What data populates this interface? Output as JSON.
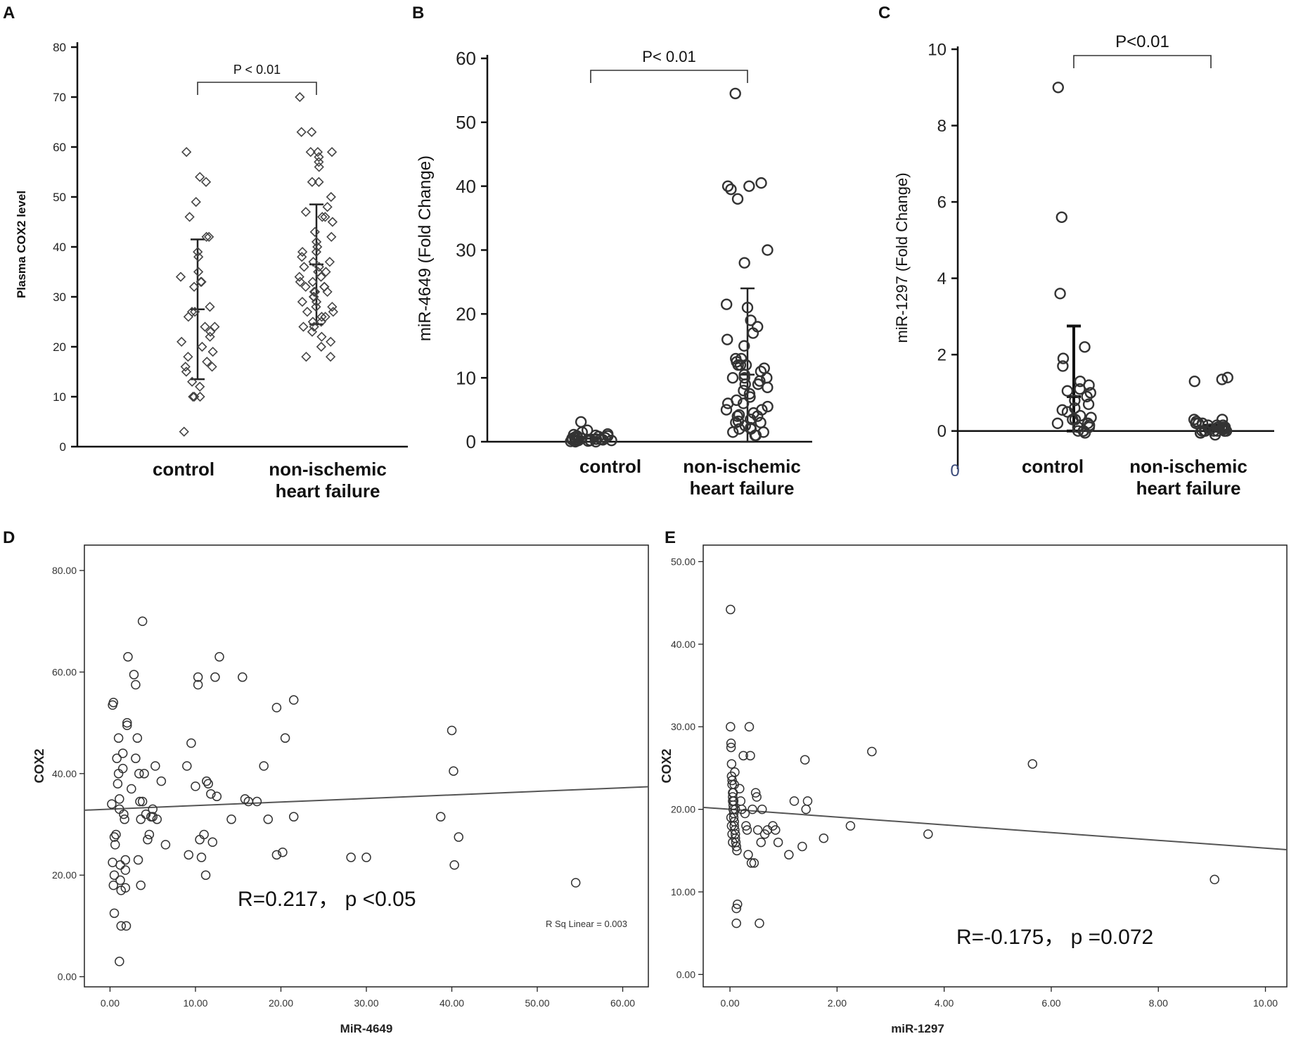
{
  "chart_data": [
    {
      "panel": "A",
      "type": "scatter",
      "ylabel": "Plasma COX2 level",
      "ylim": [
        0,
        80
      ],
      "yticks": [
        "0",
        "10",
        "20",
        "30",
        "40",
        "50",
        "60",
        "70",
        "80"
      ],
      "categories": [
        "control",
        "non-ischemic heart failure"
      ],
      "category_lines": [
        [
          "control"
        ],
        [
          "non-ischemic",
          "heart failure"
        ]
      ],
      "annotation": "P < 0.01",
      "marker": "diamond",
      "groups": [
        {
          "name": "control",
          "mean": 27.5,
          "sd": 14,
          "values": [
            59,
            53,
            54,
            49,
            46,
            42,
            42,
            39,
            38,
            35,
            34,
            33,
            33,
            32,
            28,
            27,
            27,
            26,
            24,
            24,
            23,
            22,
            21,
            20,
            19,
            18,
            17,
            16,
            16,
            15,
            13,
            12,
            10,
            10,
            10,
            3
          ]
        },
        {
          "name": "non-ischemic heart failure",
          "mean": 36.5,
          "sd": 12,
          "values": [
            70,
            63,
            63,
            59,
            59,
            59,
            58,
            57,
            56,
            53,
            53,
            50,
            48,
            47,
            46,
            46,
            45,
            43,
            42,
            41,
            40,
            39,
            39,
            38,
            37,
            37,
            36,
            36,
            35,
            35,
            34,
            34,
            33,
            33,
            32,
            32,
            32,
            31,
            31,
            31,
            30,
            30,
            29,
            29,
            28,
            28,
            27,
            27,
            26,
            26,
            25,
            25,
            24,
            24,
            23,
            22,
            21,
            20,
            18,
            18
          ]
        }
      ]
    },
    {
      "panel": "B",
      "type": "scatter",
      "ylabel": "miR-4649 (Fold  Change)",
      "ylim": [
        0,
        60
      ],
      "yticks": [
        "0",
        "10",
        "20",
        "30",
        "40",
        "50",
        "60"
      ],
      "categories": [
        "control",
        "non-ischemic heart failure"
      ],
      "category_lines": [
        [
          "control"
        ],
        [
          "non-ischemic",
          "heart failure"
        ]
      ],
      "annotation": "P< 0.01",
      "marker": "circle",
      "groups": [
        {
          "name": "control",
          "mean": 0.5,
          "sd": 0.6,
          "values": [
            3.1,
            1.8,
            1.5,
            1.2,
            1,
            0.9,
            0.8,
            0.7,
            0.6,
            0.5,
            0.5,
            0.4,
            0.4,
            0.3,
            0.3,
            0.2,
            0.2,
            0.1,
            0.1,
            0.05,
            0,
            0,
            0.3,
            0.6,
            0.9,
            1.1,
            0.2,
            0.4
          ]
        },
        {
          "name": "non-ischemic heart failure",
          "mean": 10.5,
          "sd": 13.5,
          "values": [
            54.5,
            40.5,
            40,
            40,
            39.5,
            38,
            30,
            28,
            21.5,
            21,
            19,
            18,
            17,
            16,
            15,
            13,
            12.5,
            12,
            12,
            11.5,
            11,
            10.5,
            10,
            10,
            9.5,
            9,
            8.5,
            8,
            7.5,
            7,
            6.5,
            6,
            5.5,
            5,
            5,
            4.5,
            4,
            4,
            3.5,
            3,
            3,
            2.5,
            2,
            2,
            1.5,
            1.5,
            1,
            1,
            12,
            13,
            10,
            9,
            6,
            4.2,
            3.2,
            2.2
          ]
        }
      ]
    },
    {
      "panel": "C",
      "type": "scatter",
      "ylabel": "miR-1297 (Fold  Change)",
      "ylim": [
        -1,
        10
      ],
      "yticks": [
        "0",
        "2",
        "4",
        "6",
        "8",
        "10"
      ],
      "ytick_values": [
        0,
        2,
        4,
        6,
        8,
        10
      ],
      "extra_tick": "0",
      "categories": [
        "control",
        "non-ischemic heart failure"
      ],
      "category_lines": [
        [
          "control"
        ],
        [
          "non-ischemic",
          "heart failure"
        ]
      ],
      "annotation": "P<0.01",
      "marker": "circle",
      "groups": [
        {
          "name": "control",
          "mean": 0.9,
          "sd": 1.85,
          "values": [
            9,
            5.6,
            3.6,
            2.2,
            1.9,
            1.7,
            1.3,
            1.2,
            1.1,
            1,
            0.9,
            0.8,
            0.7,
            0.6,
            0.5,
            0.4,
            0.3,
            0.3,
            0.2,
            0.2,
            0.1,
            0.1,
            0,
            0,
            0,
            -0.05,
            1.05,
            0.55,
            0.15,
            0.35
          ]
        },
        {
          "name": "non-ischemic heart failure",
          "mean": 0.05,
          "sd": 0.1,
          "values": [
            1.4,
            1.35,
            1.3,
            0.3,
            0.3,
            0.25,
            0.2,
            0.2,
            0.15,
            0.15,
            0.1,
            0.1,
            0.1,
            0.05,
            0.05,
            0.05,
            0,
            0,
            0,
            0,
            0,
            0,
            -0.05,
            -0.05,
            -0.1,
            0.2,
            0.1,
            0.05,
            0.15,
            0,
            0
          ]
        }
      ]
    },
    {
      "panel": "D",
      "type": "scatter",
      "xlabel": "MiR-4649",
      "ylabel": "COX2",
      "xlim": [
        -3,
        63
      ],
      "ylim": [
        -2,
        85
      ],
      "xticks": [
        "0.00",
        "10.00",
        "20.00",
        "30.00",
        "40.00",
        "50.00",
        "60.00"
      ],
      "yticks": [
        "0.00",
        "20.00",
        "40.00",
        "60.00",
        "80.00"
      ],
      "annotation": "R=0.217，  p <0.05",
      "rsq": "R Sq Linear = 0.003",
      "fit": {
        "intercept": 33,
        "slope": 0.07
      },
      "points": [
        [
          0.3,
          53.5
        ],
        [
          0.4,
          54
        ],
        [
          0.2,
          34
        ],
        [
          0.5,
          27.5
        ],
        [
          0.6,
          26
        ],
        [
          0.3,
          22.5
        ],
        [
          0.5,
          20
        ],
        [
          0.4,
          18
        ],
        [
          0.5,
          12.5
        ],
        [
          0.7,
          28
        ],
        [
          0.8,
          43
        ],
        [
          0.9,
          38
        ],
        [
          1,
          47
        ],
        [
          1,
          40
        ],
        [
          1.1,
          35
        ],
        [
          1.1,
          33
        ],
        [
          1.2,
          22
        ],
        [
          1.2,
          19
        ],
        [
          1.3,
          17
        ],
        [
          1.3,
          10
        ],
        [
          1.1,
          3
        ],
        [
          1.5,
          44
        ],
        [
          1.5,
          41
        ],
        [
          1.6,
          32
        ],
        [
          1.7,
          31
        ],
        [
          1.8,
          23
        ],
        [
          1.8,
          21
        ],
        [
          1.8,
          17.5
        ],
        [
          1.9,
          10
        ],
        [
          2,
          50
        ],
        [
          2,
          49.5
        ],
        [
          2.1,
          63
        ],
        [
          2.5,
          37
        ],
        [
          2.8,
          59.5
        ],
        [
          3,
          57.5
        ],
        [
          3.2,
          47
        ],
        [
          3,
          43
        ],
        [
          3.4,
          40
        ],
        [
          3.5,
          34.5
        ],
        [
          3.8,
          34.5
        ],
        [
          3.6,
          31
        ],
        [
          3.3,
          23
        ],
        [
          3.6,
          18
        ],
        [
          3.8,
          70
        ],
        [
          4,
          40
        ],
        [
          4.2,
          32
        ],
        [
          4.4,
          27
        ],
        [
          4.6,
          28
        ],
        [
          4.8,
          31.5
        ],
        [
          5,
          31.5
        ],
        [
          5,
          33
        ],
        [
          5.3,
          41.5
        ],
        [
          5.5,
          31
        ],
        [
          6,
          38.5
        ],
        [
          6.5,
          26
        ],
        [
          9,
          41.5
        ],
        [
          9.2,
          24
        ],
        [
          9.5,
          46
        ],
        [
          10,
          37.5
        ],
        [
          10.3,
          59
        ],
        [
          10.3,
          57.5
        ],
        [
          10.5,
          27
        ],
        [
          10.7,
          23.5
        ],
        [
          11,
          28
        ],
        [
          11.2,
          20
        ],
        [
          11.3,
          38.5
        ],
        [
          11.5,
          38
        ],
        [
          11.8,
          36
        ],
        [
          12,
          26.5
        ],
        [
          12.3,
          59
        ],
        [
          12.8,
          63
        ],
        [
          12.5,
          35.5
        ],
        [
          14.2,
          31
        ],
        [
          15.5,
          59
        ],
        [
          15.8,
          35
        ],
        [
          16.2,
          34.5
        ],
        [
          17.2,
          34.5
        ],
        [
          18,
          41.5
        ],
        [
          18.5,
          31
        ],
        [
          19.5,
          24
        ],
        [
          19.5,
          53
        ],
        [
          20.2,
          24.5
        ],
        [
          20.5,
          47
        ],
        [
          21.5,
          54.5
        ],
        [
          21.5,
          31.5
        ],
        [
          28.2,
          23.5
        ],
        [
          30,
          23.5
        ],
        [
          38.7,
          31.5
        ],
        [
          40,
          48.5
        ],
        [
          40.2,
          40.5
        ],
        [
          40.3,
          22
        ],
        [
          40.8,
          27.5
        ],
        [
          54.5,
          18.5
        ]
      ]
    },
    {
      "panel": "E",
      "type": "scatter",
      "xlabel": "miR-1297",
      "ylabel": "COX2",
      "xlim": [
        -0.5,
        10.4
      ],
      "ylim": [
        -1.5,
        52
      ],
      "xticks": [
        "0.00",
        "2.00",
        "4.00",
        "6.00",
        "8.00",
        "10.00"
      ],
      "yticks": [
        "0.00",
        "10.00",
        "20.00",
        "30.00",
        "40.00",
        "50.00"
      ],
      "annotation": "R=-0.175，  p =0.072",
      "fit": {
        "intercept": 20,
        "slope": -0.47
      },
      "points": [
        [
          0.01,
          44.2
        ],
        [
          0.01,
          30
        ],
        [
          0.02,
          28
        ],
        [
          0.02,
          27.5
        ],
        [
          0.03,
          25.5
        ],
        [
          0.03,
          24
        ],
        [
          0.04,
          23.5
        ],
        [
          0.04,
          23
        ],
        [
          0.05,
          22
        ],
        [
          0.05,
          21.5
        ],
        [
          0.05,
          21
        ],
        [
          0.06,
          20.5
        ],
        [
          0.06,
          20
        ],
        [
          0.07,
          19.5
        ],
        [
          0.07,
          19
        ],
        [
          0.08,
          18.5
        ],
        [
          0.08,
          18
        ],
        [
          0.09,
          17.5
        ],
        [
          0.1,
          17
        ],
        [
          0.1,
          16.5
        ],
        [
          0.11,
          16
        ],
        [
          0.12,
          15.5
        ],
        [
          0.13,
          15
        ],
        [
          0.02,
          19
        ],
        [
          0.03,
          18
        ],
        [
          0.04,
          17
        ],
        [
          0.05,
          16
        ],
        [
          0.06,
          22
        ],
        [
          0.07,
          21
        ],
        [
          0.08,
          23
        ],
        [
          0.09,
          24.5
        ],
        [
          0.1,
          20
        ],
        [
          0.12,
          8
        ],
        [
          0.14,
          8.5
        ],
        [
          0.12,
          6.2
        ],
        [
          0.18,
          22.5
        ],
        [
          0.2,
          21
        ],
        [
          0.22,
          20
        ],
        [
          0.25,
          26.5
        ],
        [
          0.28,
          19.5
        ],
        [
          0.3,
          18
        ],
        [
          0.32,
          17.5
        ],
        [
          0.34,
          14.5
        ],
        [
          0.36,
          30
        ],
        [
          0.38,
          26.5
        ],
        [
          0.4,
          13.5
        ],
        [
          0.42,
          20
        ],
        [
          0.45,
          13.5
        ],
        [
          0.48,
          22
        ],
        [
          0.5,
          21.5
        ],
        [
          0.52,
          17.5
        ],
        [
          0.55,
          6.2
        ],
        [
          0.58,
          16
        ],
        [
          0.6,
          20
        ],
        [
          0.65,
          17
        ],
        [
          0.7,
          17.5
        ],
        [
          0.8,
          18
        ],
        [
          0.85,
          17.5
        ],
        [
          0.9,
          16
        ],
        [
          1.1,
          14.5
        ],
        [
          1.2,
          21
        ],
        [
          1.35,
          15.5
        ],
        [
          1.4,
          26
        ],
        [
          1.42,
          20
        ],
        [
          1.45,
          21
        ],
        [
          1.75,
          16.5
        ],
        [
          2.25,
          18
        ],
        [
          2.65,
          27
        ],
        [
          3.7,
          17
        ],
        [
          5.65,
          25.5
        ],
        [
          9.05,
          11.5
        ]
      ]
    }
  ],
  "panel_letters": [
    "A",
    "B",
    "C",
    "D",
    "E"
  ],
  "colors": {
    "axis": "#111111",
    "marker": "#333333",
    "text": "#111111"
  }
}
